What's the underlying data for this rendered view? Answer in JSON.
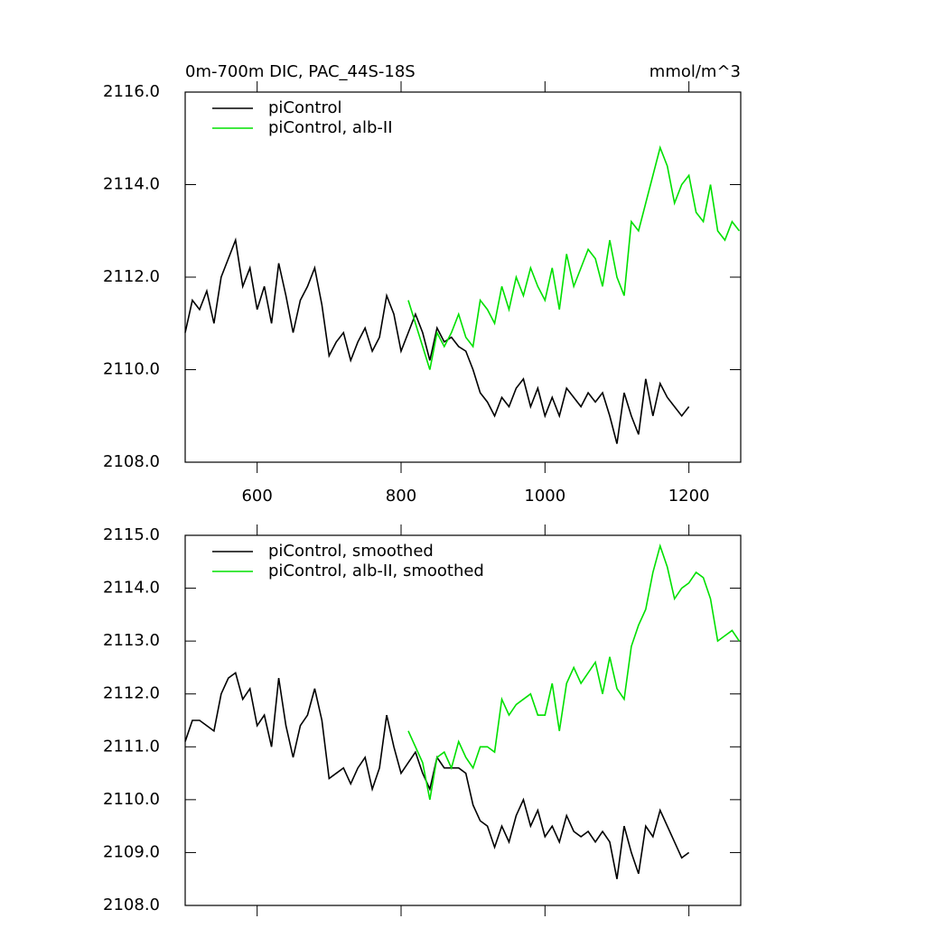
{
  "chart_data": [
    {
      "type": "line",
      "title": "0m-700m DIC, PAC_44S-18S",
      "units": "mmol/m^3",
      "xlim": [
        500,
        1272
      ],
      "xticks": [
        600,
        800,
        1000,
        1200
      ],
      "xtick_labels": true,
      "ylim": [
        2108,
        2116
      ],
      "yticks": [
        {
          "value": 2108,
          "label": "2108.0"
        },
        {
          "value": 2110,
          "label": "2110.0"
        },
        {
          "value": 2112,
          "label": "2112.0"
        },
        {
          "value": 2114,
          "label": "2114.0"
        },
        {
          "value": 2116,
          "label": "2116.0"
        }
      ],
      "legend": "top-left",
      "series": [
        {
          "name": "piControl",
          "color": "#000000",
          "x": [
            500,
            510,
            520,
            530,
            540,
            550,
            560,
            570,
            580,
            590,
            600,
            610,
            620,
            630,
            640,
            650,
            660,
            670,
            680,
            690,
            700,
            710,
            720,
            730,
            740,
            750,
            760,
            770,
            780,
            790,
            800,
            810,
            820,
            830,
            840,
            850,
            860,
            870,
            880,
            890,
            900,
            910,
            920,
            930,
            940,
            950,
            960,
            970,
            980,
            990,
            1000,
            1010,
            1020,
            1030,
            1040,
            1050,
            1060,
            1070,
            1080,
            1090,
            1100,
            1110,
            1120,
            1130,
            1140,
            1150,
            1160,
            1170,
            1180,
            1190,
            1200
          ],
          "values": [
            2110.8,
            2111.5,
            2111.3,
            2111.7,
            2111.0,
            2112.0,
            2112.4,
            2112.8,
            2111.8,
            2112.2,
            2111.3,
            2111.8,
            2111.0,
            2112.3,
            2111.6,
            2110.8,
            2111.5,
            2111.8,
            2112.2,
            2111.4,
            2110.3,
            2110.6,
            2110.8,
            2110.2,
            2110.6,
            2110.9,
            2110.4,
            2110.7,
            2111.6,
            2111.2,
            2110.4,
            2110.8,
            2111.2,
            2110.8,
            2110.2,
            2110.9,
            2110.6,
            2110.7,
            2110.5,
            2110.4,
            2110.0,
            2109.5,
            2109.3,
            2109.0,
            2109.4,
            2109.2,
            2109.6,
            2109.8,
            2109.2,
            2109.6,
            2109.0,
            2109.4,
            2109.0,
            2109.6,
            2109.4,
            2109.2,
            2109.5,
            2109.3,
            2109.5,
            2109.0,
            2108.4,
            2109.5,
            2109.0,
            2108.6,
            2109.8,
            2109.0,
            2109.7,
            2109.4,
            2109.2,
            2109.0,
            2109.2
          ]
        },
        {
          "name": "piControl, alb-II",
          "color": "#00e000",
          "x": [
            810,
            820,
            830,
            840,
            850,
            860,
            870,
            880,
            890,
            900,
            910,
            920,
            930,
            940,
            950,
            960,
            970,
            980,
            990,
            1000,
            1010,
            1020,
            1030,
            1040,
            1050,
            1060,
            1070,
            1080,
            1090,
            1100,
            1110,
            1120,
            1130,
            1140,
            1150,
            1160,
            1170,
            1180,
            1190,
            1200,
            1210,
            1220,
            1230,
            1240,
            1250,
            1260,
            1270
          ],
          "values": [
            2111.5,
            2111.0,
            2110.5,
            2110.0,
            2110.8,
            2110.5,
            2110.8,
            2111.2,
            2110.7,
            2110.5,
            2111.5,
            2111.3,
            2111.0,
            2111.8,
            2111.3,
            2112.0,
            2111.6,
            2112.2,
            2111.8,
            2111.5,
            2112.2,
            2111.3,
            2112.5,
            2111.8,
            2112.2,
            2112.6,
            2112.4,
            2111.8,
            2112.8,
            2112.0,
            2111.6,
            2113.2,
            2113.0,
            2113.6,
            2114.2,
            2114.8,
            2114.4,
            2113.6,
            2114.0,
            2114.2,
            2113.4,
            2113.2,
            2114.0,
            2113.0,
            2112.8,
            2113.2,
            2113.0
          ]
        }
      ]
    },
    {
      "type": "line",
      "xlim": [
        500,
        1272
      ],
      "xticks": [
        600,
        800,
        1000,
        1200
      ],
      "xtick_labels": false,
      "ylim": [
        2108,
        2115
      ],
      "yticks": [
        {
          "value": 2108,
          "label": "2108.0"
        },
        {
          "value": 2109,
          "label": "2109.0"
        },
        {
          "value": 2110,
          "label": "2110.0"
        },
        {
          "value": 2111,
          "label": "2111.0"
        },
        {
          "value": 2112,
          "label": "2112.0"
        },
        {
          "value": 2113,
          "label": "2113.0"
        },
        {
          "value": 2114,
          "label": "2114.0"
        },
        {
          "value": 2115,
          "label": "2115.0"
        }
      ],
      "legend": "top-left",
      "series": [
        {
          "name": "piControl, smoothed",
          "color": "#000000",
          "x": [
            500,
            510,
            520,
            530,
            540,
            550,
            560,
            570,
            580,
            590,
            600,
            610,
            620,
            630,
            640,
            650,
            660,
            670,
            680,
            690,
            700,
            710,
            720,
            730,
            740,
            750,
            760,
            770,
            780,
            790,
            800,
            810,
            820,
            830,
            840,
            850,
            860,
            870,
            880,
            890,
            900,
            910,
            920,
            930,
            940,
            950,
            960,
            970,
            980,
            990,
            1000,
            1010,
            1020,
            1030,
            1040,
            1050,
            1060,
            1070,
            1080,
            1090,
            1100,
            1110,
            1120,
            1130,
            1140,
            1150,
            1160,
            1170,
            1180,
            1190,
            1200
          ],
          "values": [
            2111.1,
            2111.5,
            2111.5,
            2111.4,
            2111.3,
            2112.0,
            2112.3,
            2112.4,
            2111.9,
            2112.1,
            2111.4,
            2111.6,
            2111.0,
            2112.3,
            2111.4,
            2110.8,
            2111.4,
            2111.6,
            2112.1,
            2111.5,
            2110.4,
            2110.5,
            2110.6,
            2110.3,
            2110.6,
            2110.8,
            2110.2,
            2110.6,
            2111.6,
            2111.0,
            2110.5,
            2110.7,
            2110.9,
            2110.5,
            2110.2,
            2110.8,
            2110.6,
            2110.6,
            2110.6,
            2110.5,
            2109.9,
            2109.6,
            2109.5,
            2109.1,
            2109.5,
            2109.2,
            2109.7,
            2110.0,
            2109.5,
            2109.8,
            2109.3,
            2109.5,
            2109.2,
            2109.7,
            2109.4,
            2109.3,
            2109.4,
            2109.2,
            2109.4,
            2109.2,
            2108.5,
            2109.5,
            2109.0,
            2108.6,
            2109.5,
            2109.3,
            2109.8,
            2109.5,
            2109.2,
            2108.9,
            2109.0
          ]
        },
        {
          "name": "piControl, alb-II, smoothed",
          "color": "#00e000",
          "x": [
            810,
            820,
            830,
            840,
            850,
            860,
            870,
            880,
            890,
            900,
            910,
            920,
            930,
            940,
            950,
            960,
            970,
            980,
            990,
            1000,
            1010,
            1020,
            1030,
            1040,
            1050,
            1060,
            1070,
            1080,
            1090,
            1100,
            1110,
            1120,
            1130,
            1140,
            1150,
            1160,
            1170,
            1180,
            1190,
            1200,
            1210,
            1220,
            1230,
            1240,
            1250,
            1260,
            1270
          ],
          "values": [
            2111.3,
            2111.0,
            2110.7,
            2110.0,
            2110.8,
            2110.9,
            2110.6,
            2111.1,
            2110.8,
            2110.6,
            2111.0,
            2111.0,
            2110.9,
            2111.9,
            2111.6,
            2111.8,
            2111.9,
            2112.0,
            2111.6,
            2111.6,
            2112.2,
            2111.3,
            2112.2,
            2112.5,
            2112.2,
            2112.4,
            2112.6,
            2112.0,
            2112.7,
            2112.1,
            2111.9,
            2112.9,
            2113.3,
            2113.6,
            2114.3,
            2114.8,
            2114.4,
            2113.8,
            2114.0,
            2114.1,
            2114.3,
            2114.2,
            2113.8,
            2113.0,
            2113.1,
            2113.2,
            2113.0
          ]
        }
      ]
    }
  ]
}
